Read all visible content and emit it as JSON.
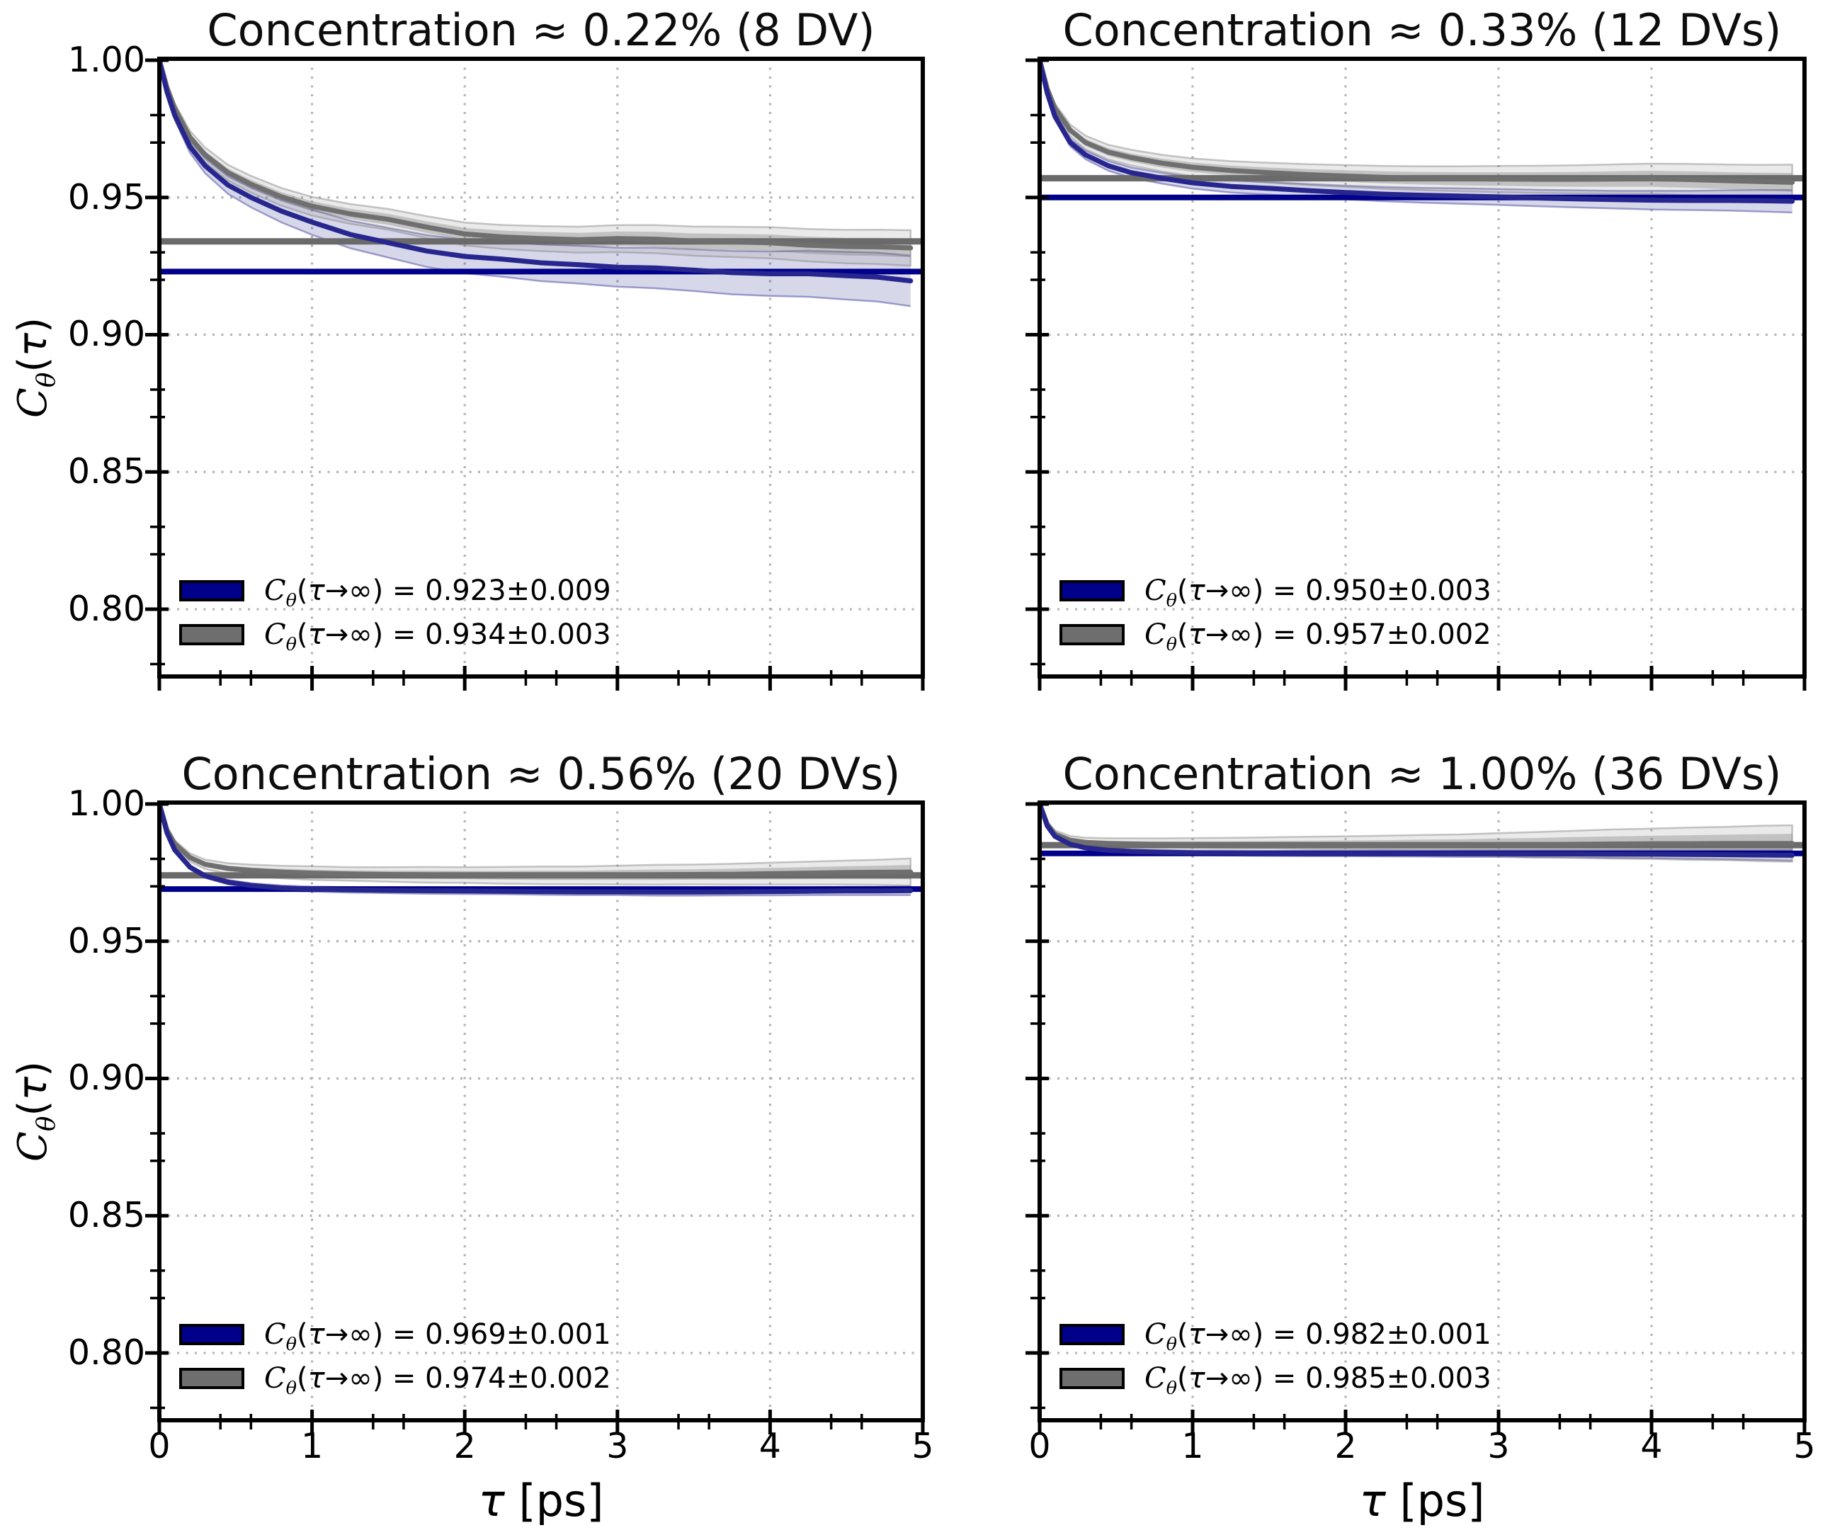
{
  "figure": {
    "background": "#ffffff",
    "type": "2x2 correlation function panel"
  },
  "math": {
    "sym": "C",
    "sub": "θ",
    "lp": "(",
    "tau": "τ",
    "legend_rest": "→∞)",
    "eq": " = ",
    "ylabel_rest": ")",
    "ps": " [ps]"
  },
  "axes": {
    "xlim": [
      0,
      5
    ],
    "ylim": [
      0.7755,
      1.0005
    ],
    "x_ticks": [
      0,
      1,
      2,
      3,
      4,
      5
    ],
    "x_tick_labels": [
      "0",
      "1",
      "2",
      "3",
      "4",
      "5"
    ],
    "y_ticks": [
      1.0,
      0.95,
      0.9,
      0.85,
      0.8
    ],
    "y_tick_labels": [
      "1.00",
      "0.95",
      "0.90",
      "0.85",
      "0.80"
    ],
    "x_minor_step": 0.2,
    "y_minor_step": 0.01,
    "grid_x": [
      1,
      2,
      3,
      4
    ],
    "grid_y": [
      0.95,
      0.9,
      0.85,
      0.8
    ],
    "grid_style": "dotted"
  },
  "colors": {
    "blue_line": "#26268e",
    "blue_hline": "#0a0a8b",
    "blue_band": "rgba(55,55,150,0.20)",
    "blue_band_edge": "rgba(55,55,150,0.45)",
    "gray_line": "#6f6f6f",
    "gray_hline": "#6a6a6a",
    "gray_band": "rgba(110,110,110,0.32)",
    "gray_band_outer": "rgba(150,150,150,0.20)",
    "gray_band_edge": "rgba(130,130,130,0.45)",
    "grid": "#b3b3b3",
    "spine": "#000000",
    "swatch_blue": "#00008b",
    "swatch_gray": "#6e6e6e"
  },
  "chart_data": [
    {
      "type": "line",
      "position": "top-left",
      "title": "Concentration ≈ 0.22% (8 DV)",
      "x": [
        0,
        0.05,
        0.1,
        0.2,
        0.3,
        0.45,
        0.6,
        0.8,
        1.0,
        1.25,
        1.5,
        1.75,
        2.0,
        2.25,
        2.5,
        2.75,
        3.0,
        3.25,
        3.5,
        3.75,
        4.0,
        4.25,
        4.5,
        4.7,
        4.92
      ],
      "series": [
        {
          "name": "blue",
          "color_key": "blue",
          "asymptote": 0.923,
          "legend_value": "0.923±0.009",
          "y": [
            1.0,
            0.9885,
            0.98,
            0.9685,
            0.9615,
            0.9545,
            0.95,
            0.945,
            0.941,
            0.9365,
            0.9335,
            0.9305,
            0.9285,
            0.9275,
            0.9262,
            0.9255,
            0.9246,
            0.9243,
            0.9235,
            0.9226,
            0.9222,
            0.9222,
            0.9215,
            0.921,
            0.9196
          ],
          "band": [
            0.0004,
            0.001,
            0.0016,
            0.0022,
            0.0027,
            0.0032,
            0.0036,
            0.0041,
            0.0046,
            0.005,
            0.0054,
            0.0058,
            0.0061,
            0.0064,
            0.0067,
            0.0069,
            0.0071,
            0.0074,
            0.0076,
            0.0079,
            0.0081,
            0.0084,
            0.0087,
            0.0089,
            0.0092
          ]
        },
        {
          "name": "gray",
          "color_key": "gray",
          "asymptote": 0.934,
          "legend_value": "0.934±0.003",
          "y": [
            1.0,
            0.99,
            0.9825,
            0.972,
            0.9655,
            0.959,
            0.9548,
            0.9502,
            0.9468,
            0.944,
            0.942,
            0.9392,
            0.9367,
            0.9356,
            0.935,
            0.9346,
            0.935,
            0.9348,
            0.9341,
            0.9338,
            0.9335,
            0.9326,
            0.9321,
            0.932,
            0.9316
          ],
          "band": [
            0.0004,
            0.0008,
            0.001,
            0.0012,
            0.0014,
            0.0015,
            0.0016,
            0.0017,
            0.0018,
            0.0019,
            0.002,
            0.0021,
            0.0022,
            0.0023,
            0.0024,
            0.0025,
            0.0026,
            0.0027,
            0.0028,
            0.0029,
            0.003,
            0.0031,
            0.0032,
            0.0033,
            0.0034
          ]
        }
      ]
    },
    {
      "type": "line",
      "position": "top-right",
      "title": "Concentration ≈ 0.33% (12 DVs)",
      "x": [
        0,
        0.05,
        0.1,
        0.2,
        0.3,
        0.45,
        0.6,
        0.8,
        1.0,
        1.25,
        1.5,
        1.75,
        2.0,
        2.25,
        2.5,
        2.75,
        3.0,
        3.25,
        3.5,
        3.75,
        4.0,
        4.25,
        4.5,
        4.7,
        4.92
      ],
      "series": [
        {
          "name": "blue",
          "color_key": "blue",
          "asymptote": 0.95,
          "legend_value": "0.950±0.003",
          "y": [
            1.0,
            0.988,
            0.9795,
            0.97,
            0.9655,
            0.9615,
            0.959,
            0.957,
            0.9553,
            0.954,
            0.9533,
            0.9525,
            0.9518,
            0.9512,
            0.9508,
            0.9505,
            0.9502,
            0.9498,
            0.9495,
            0.9492,
            0.949,
            0.9489,
            0.9489,
            0.9488,
            0.9486
          ],
          "band": [
            0.0004,
            0.0008,
            0.0011,
            0.0014,
            0.0016,
            0.0018,
            0.0019,
            0.002,
            0.0021,
            0.0022,
            0.0023,
            0.0024,
            0.0025,
            0.0026,
            0.0027,
            0.0028,
            0.0029,
            0.003,
            0.0031,
            0.0032,
            0.0034,
            0.0035,
            0.0037,
            0.0039,
            0.0041
          ]
        },
        {
          "name": "gray",
          "color_key": "gray",
          "asymptote": 0.957,
          "legend_value": "0.957±0.002",
          "y": [
            1.0,
            0.9895,
            0.9825,
            0.9745,
            0.97,
            0.9665,
            0.9645,
            0.9625,
            0.961,
            0.9598,
            0.959,
            0.9583,
            0.9578,
            0.9573,
            0.957,
            0.9568,
            0.9567,
            0.9566,
            0.9566,
            0.9567,
            0.9568,
            0.9565,
            0.9561,
            0.9558,
            0.9555
          ],
          "band": [
            0.0004,
            0.0007,
            0.0009,
            0.0011,
            0.0013,
            0.0014,
            0.0015,
            0.0016,
            0.0017,
            0.0018,
            0.0019,
            0.002,
            0.0021,
            0.0022,
            0.0023,
            0.0024,
            0.0025,
            0.0026,
            0.0027,
            0.0028,
            0.0029,
            0.003,
            0.0031,
            0.0032,
            0.0034
          ]
        }
      ]
    },
    {
      "type": "line",
      "position": "bottom-left",
      "title": "Concentration ≈ 0.56% (20 DVs)",
      "x": [
        0,
        0.05,
        0.1,
        0.2,
        0.3,
        0.45,
        0.6,
        0.8,
        1.0,
        1.25,
        1.5,
        1.75,
        2.0,
        2.25,
        2.5,
        2.75,
        3.0,
        3.25,
        3.5,
        3.75,
        4.0,
        4.25,
        4.5,
        4.7,
        4.92
      ],
      "series": [
        {
          "name": "blue",
          "color_key": "blue",
          "asymptote": 0.969,
          "legend_value": "0.969±0.001",
          "y": [
            1.0,
            0.9895,
            0.9833,
            0.977,
            0.9738,
            0.9715,
            0.9703,
            0.9694,
            0.969,
            0.9687,
            0.9685,
            0.9684,
            0.9683,
            0.9682,
            0.9681,
            0.968,
            0.968,
            0.9679,
            0.9679,
            0.968,
            0.9681,
            0.9682,
            0.9683,
            0.9683,
            0.9684
          ],
          "band": [
            0.0004,
            0.0005,
            0.0006,
            0.0007,
            0.0007,
            0.0008,
            0.0008,
            0.0009,
            0.0009,
            0.001,
            0.001,
            0.0011,
            0.0011,
            0.0011,
            0.0012,
            0.0012,
            0.0012,
            0.0013,
            0.0013,
            0.0013,
            0.0014,
            0.0014,
            0.0015,
            0.0015,
            0.0016
          ]
        },
        {
          "name": "gray",
          "color_key": "gray",
          "asymptote": 0.974,
          "legend_value": "0.974±0.002",
          "y": [
            1.0,
            0.9905,
            0.9855,
            0.9805,
            0.978,
            0.9765,
            0.9758,
            0.9752,
            0.9748,
            0.9745,
            0.9743,
            0.9742,
            0.9741,
            0.974,
            0.974,
            0.974,
            0.9741,
            0.9742,
            0.9743,
            0.9744,
            0.9746,
            0.9748,
            0.975,
            0.9751,
            0.9752
          ],
          "band": [
            0.0005,
            0.0006,
            0.0007,
            0.0008,
            0.0009,
            0.001,
            0.0011,
            0.0012,
            0.0013,
            0.0013,
            0.0014,
            0.0015,
            0.0015,
            0.0016,
            0.0017,
            0.0017,
            0.0018,
            0.0019,
            0.0019,
            0.002,
            0.0021,
            0.0022,
            0.0023,
            0.0024,
            0.0026
          ]
        }
      ]
    },
    {
      "type": "line",
      "position": "bottom-right",
      "title": "Concentration ≈ 1.00% (36 DVs)",
      "x": [
        0,
        0.05,
        0.1,
        0.2,
        0.3,
        0.45,
        0.6,
        0.8,
        1.0,
        1.25,
        1.5,
        1.75,
        2.0,
        2.25,
        2.5,
        2.75,
        3.0,
        3.25,
        3.5,
        3.75,
        4.0,
        4.25,
        4.5,
        4.7,
        4.92
      ],
      "series": [
        {
          "name": "blue",
          "color_key": "blue",
          "asymptote": 0.982,
          "legend_value": "0.982±0.001",
          "y": [
            1.0,
            0.992,
            0.9882,
            0.9853,
            0.984,
            0.9831,
            0.9827,
            0.9824,
            0.9822,
            0.9821,
            0.982,
            0.982,
            0.982,
            0.982,
            0.9819,
            0.9819,
            0.9819,
            0.9818,
            0.9818,
            0.9817,
            0.9817,
            0.9816,
            0.9815,
            0.9814,
            0.9813
          ],
          "band": [
            0.0004,
            0.0005,
            0.0005,
            0.0006,
            0.0006,
            0.0007,
            0.0007,
            0.0008,
            0.0008,
            0.0009,
            0.0009,
            0.001,
            0.001,
            0.0011,
            0.0011,
            0.0012,
            0.0012,
            0.0013,
            0.0013,
            0.0014,
            0.0015,
            0.0016,
            0.0017,
            0.0018,
            0.002
          ]
        },
        {
          "name": "gray",
          "color_key": "gray",
          "asymptote": 0.985,
          "legend_value": "0.985±0.003",
          "y": [
            1.0,
            0.9925,
            0.989,
            0.9868,
            0.986,
            0.9856,
            0.9854,
            0.9852,
            0.9851,
            0.985,
            0.985,
            0.985,
            0.985,
            0.985,
            0.9851,
            0.9851,
            0.9852,
            0.9852,
            0.9853,
            0.9854,
            0.9855,
            0.9855,
            0.9856,
            0.9856,
            0.9856
          ],
          "band": [
            0.0005,
            0.0006,
            0.0007,
            0.0008,
            0.0009,
            0.001,
            0.0011,
            0.0012,
            0.0013,
            0.0014,
            0.0015,
            0.0016,
            0.0017,
            0.0018,
            0.0019,
            0.002,
            0.0022,
            0.0024,
            0.0026,
            0.0028,
            0.0029,
            0.0031,
            0.0032,
            0.0034,
            0.0035
          ]
        }
      ]
    }
  ]
}
